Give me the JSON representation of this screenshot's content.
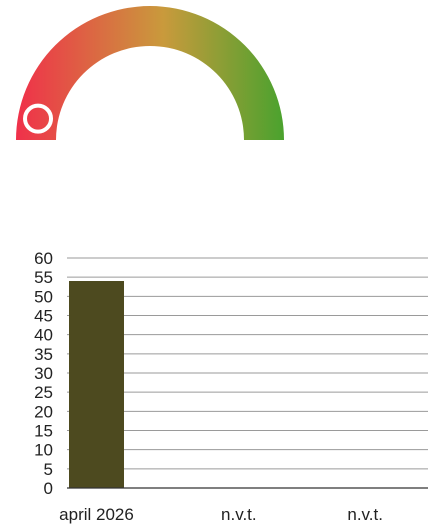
{
  "gauge": {
    "value_fraction": 0.06,
    "colors": {
      "start": "#f0304a",
      "mid": "#c99a3c",
      "end": "#4aa22e",
      "knob": "#ffffff"
    }
  },
  "chart_data": {
    "type": "bar",
    "categories": [
      "april 2026",
      "n.v.t.",
      "n.v.t."
    ],
    "values": [
      54,
      null,
      null
    ],
    "title": "",
    "xlabel": "",
    "ylabel": "",
    "ylim": [
      0,
      60
    ],
    "yticks": [
      0,
      5,
      10,
      15,
      20,
      25,
      30,
      35,
      40,
      45,
      50,
      55,
      60
    ],
    "grid": true,
    "legend": "none",
    "bar_color": "#4d4a1f"
  }
}
